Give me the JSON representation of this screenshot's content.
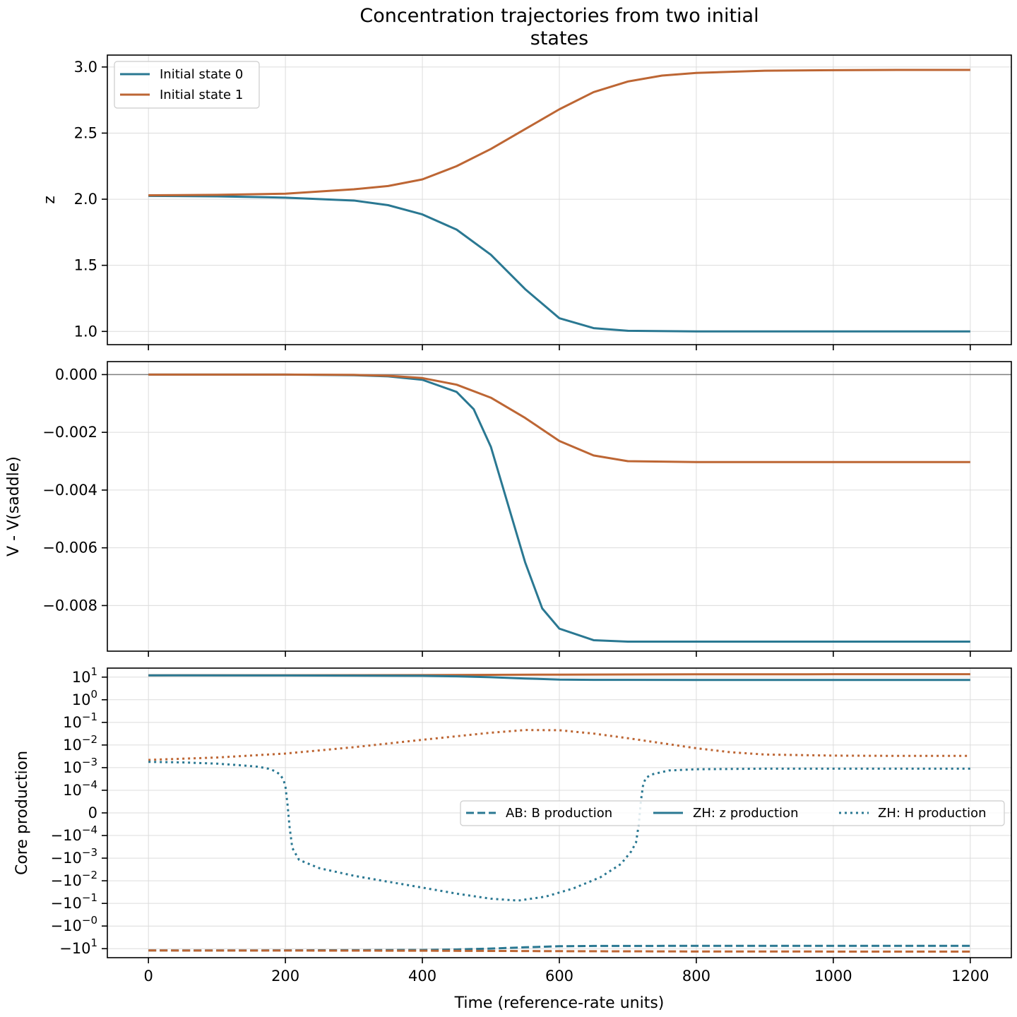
{
  "title": "Concentration trajectories from two initial states",
  "title_lines": [
    "Concentration trajectories from two initial",
    "states"
  ],
  "colors": {
    "state0": "#2a7892",
    "state1": "#bd6634",
    "zero_line": "#808080"
  },
  "chart_data": [
    {
      "type": "line",
      "panel": "top",
      "xlabel": "",
      "ylabel": "z",
      "xlim": [
        -60,
        1260
      ],
      "ylim": [
        0.9,
        3.09
      ],
      "xticks": [
        0,
        200,
        400,
        600,
        800,
        1000,
        1200
      ],
      "yticks": [
        1.0,
        1.5,
        2.0,
        2.5,
        3.0
      ],
      "ytick_labels": [
        "1.0",
        "1.5",
        "2.0",
        "2.5",
        "3.0"
      ],
      "grid": true,
      "legend_placement": "upper-left",
      "legend": [
        "Initial state 0",
        "Initial state 1"
      ],
      "series": [
        {
          "name": "Initial state 0",
          "style": "solid",
          "color": "#2a7892",
          "x": [
            0,
            100,
            200,
            300,
            350,
            400,
            450,
            500,
            550,
            600,
            650,
            700,
            800,
            900,
            1000,
            1100,
            1200
          ],
          "y": [
            2.025,
            2.022,
            2.012,
            1.99,
            1.955,
            1.885,
            1.77,
            1.58,
            1.32,
            1.1,
            1.025,
            1.005,
            1.0,
            1.0,
            1.0,
            1.0,
            1.0
          ]
        },
        {
          "name": "Initial state 1",
          "style": "solid",
          "color": "#bd6634",
          "x": [
            0,
            100,
            200,
            300,
            350,
            400,
            450,
            500,
            550,
            600,
            650,
            700,
            750,
            800,
            900,
            1000,
            1100,
            1200
          ],
          "y": [
            2.03,
            2.033,
            2.042,
            2.075,
            2.1,
            2.15,
            2.25,
            2.38,
            2.53,
            2.68,
            2.81,
            2.89,
            2.935,
            2.955,
            2.972,
            2.976,
            2.978,
            2.978
          ]
        }
      ]
    },
    {
      "type": "line",
      "panel": "middle",
      "xlabel": "",
      "ylabel": "V - V(saddle)",
      "xlim": [
        -60,
        1260
      ],
      "ylim": [
        -0.00958,
        0.00045
      ],
      "xticks": [
        0,
        200,
        400,
        600,
        800,
        1000,
        1200
      ],
      "yticks": [
        0.0,
        -0.002,
        -0.004,
        -0.006,
        -0.008
      ],
      "ytick_labels": [
        "0.000",
        "−0.002",
        "−0.004",
        "−0.006",
        "−0.008"
      ],
      "grid": true,
      "reference_line": 0,
      "series": [
        {
          "name": "Initial state 0",
          "style": "solid",
          "color": "#2a7892",
          "x": [
            0,
            100,
            200,
            300,
            350,
            400,
            450,
            475,
            500,
            525,
            550,
            575,
            600,
            650,
            700,
            800,
            900,
            1000,
            1100,
            1200
          ],
          "y": [
            0.0,
            0.0,
            0.0,
            -2e-05,
            -6e-05,
            -0.00018,
            -0.0006,
            -0.0012,
            -0.0025,
            -0.0045,
            -0.0065,
            -0.0081,
            -0.0088,
            -0.0092,
            -0.00925,
            -0.00925,
            -0.00925,
            -0.00925,
            -0.00925,
            -0.00925
          ]
        },
        {
          "name": "Initial state 1",
          "style": "solid",
          "color": "#bd6634",
          "x": [
            0,
            100,
            200,
            300,
            350,
            400,
            450,
            500,
            550,
            600,
            650,
            700,
            800,
            900,
            1000,
            1100,
            1200
          ],
          "y": [
            0.0,
            0.0,
            0.0,
            -1e-05,
            -4e-05,
            -0.00012,
            -0.00035,
            -0.0008,
            -0.0015,
            -0.0023,
            -0.0028,
            -0.003,
            -0.00303,
            -0.00303,
            -0.00303,
            -0.00303,
            -0.00303
          ]
        }
      ]
    },
    {
      "type": "line",
      "panel": "bottom",
      "xlabel": "Time (reference-rate units)",
      "ylabel": "Core production",
      "xlim": [
        -60,
        1260
      ],
      "yscale": "symlog",
      "linthresh": 0.0001,
      "ylim": [
        -25,
        25
      ],
      "xticks": [
        0,
        200,
        400,
        600,
        800,
        1000,
        1200
      ],
      "xtick_labels": [
        "0",
        "200",
        "400",
        "600",
        "800",
        "1000",
        "1200"
      ],
      "yticks": [
        10,
        1,
        0.1,
        0.01,
        0.001,
        0.0001,
        0,
        -0.0001,
        -0.001,
        -0.01,
        -0.1,
        -1,
        -10
      ],
      "ytick_labels": [
        {
          "base": "10",
          "exp": "1"
        },
        {
          "base": "10",
          "exp": "0"
        },
        {
          "base": "10",
          "exp": "−1"
        },
        {
          "base": "10",
          "exp": "−2"
        },
        {
          "base": "10",
          "exp": "−3"
        },
        {
          "base": "10",
          "exp": "−4"
        },
        {
          "base": "0",
          "exp": ""
        },
        {
          "base": "−10",
          "exp": "−4"
        },
        {
          "base": "−10",
          "exp": "−3"
        },
        {
          "base": "−10",
          "exp": "−2"
        },
        {
          "base": "−10",
          "exp": "−1"
        },
        {
          "base": "−10",
          "exp": "−0"
        },
        {
          "base": "−10",
          "exp": "1"
        }
      ],
      "grid": true,
      "legend_placement": "center-right",
      "legend": [
        "AB: B production",
        "ZH: z production",
        "ZH: H production"
      ],
      "series": [
        {
          "name": "ZH: z production",
          "style": "solid",
          "color": "#bd6634",
          "x": [
            0,
            200,
            400,
            600,
            800,
            1000,
            1200
          ],
          "y": [
            12.0,
            12.1,
            12.3,
            12.9,
            13.3,
            13.4,
            13.4
          ]
        },
        {
          "name": "ZH: z production",
          "style": "solid",
          "color": "#2a7892",
          "x": [
            0,
            200,
            400,
            450,
            500,
            550,
            600,
            650,
            800,
            1000,
            1200
          ],
          "y": [
            12.0,
            11.9,
            11.4,
            10.8,
            9.9,
            8.7,
            7.8,
            7.6,
            7.5,
            7.5,
            7.5
          ]
        },
        {
          "name": "ZH: H production",
          "style": "dotted",
          "color": "#bd6634",
          "x": [
            0,
            100,
            200,
            300,
            400,
            500,
            550,
            600,
            650,
            700,
            750,
            800,
            850,
            900,
            1000,
            1100,
            1200
          ],
          "y": [
            0.0022,
            0.0028,
            0.0042,
            0.008,
            0.017,
            0.035,
            0.046,
            0.045,
            0.032,
            0.02,
            0.012,
            0.0072,
            0.0048,
            0.0038,
            0.0034,
            0.0033,
            0.0033
          ]
        },
        {
          "name": "ZH: H production",
          "style": "dotted",
          "color": "#2a7892",
          "x": [
            0,
            50,
            100,
            130,
            160,
            175,
            185,
            192,
            197,
            200,
            203,
            206,
            210,
            220,
            250,
            300,
            350,
            400,
            450,
            500,
            540,
            580,
            620,
            660,
            690,
            705,
            712,
            716,
            719,
            722,
            726,
            735,
            760,
            800,
            900,
            1000,
            1100,
            1200
          ],
          "y": [
            0.0018,
            0.0017,
            0.0015,
            0.0013,
            0.0011,
            0.0009,
            0.0007,
            0.0005,
            0.0003,
            0.00015,
            4e-05,
            -6e-05,
            -0.00035,
            -0.0012,
            -0.0028,
            -0.006,
            -0.011,
            -0.02,
            -0.037,
            -0.062,
            -0.075,
            -0.05,
            -0.022,
            -0.007,
            -0.0018,
            -0.0005,
            -0.0002,
            -5e-05,
            5e-05,
            0.00015,
            0.00035,
            0.0005,
            0.00075,
            0.00085,
            0.0009,
            0.0009,
            0.0009,
            0.0009
          ]
        },
        {
          "name": "AB: B production",
          "style": "dashed",
          "color": "#2a7892",
          "x": [
            0,
            200,
            400,
            450,
            500,
            550,
            600,
            650,
            800,
            1000,
            1200
          ],
          "y": [
            -12.0,
            -11.9,
            -11.4,
            -10.8,
            -9.9,
            -8.7,
            -7.8,
            -7.6,
            -7.5,
            -7.5,
            -7.5
          ]
        },
        {
          "name": "AB: B production",
          "style": "dashed",
          "color": "#bd6634",
          "x": [
            0,
            200,
            400,
            600,
            800,
            1000,
            1200
          ],
          "y": [
            -12.0,
            -12.1,
            -12.3,
            -12.9,
            -13.3,
            -13.4,
            -13.4
          ]
        }
      ]
    }
  ]
}
